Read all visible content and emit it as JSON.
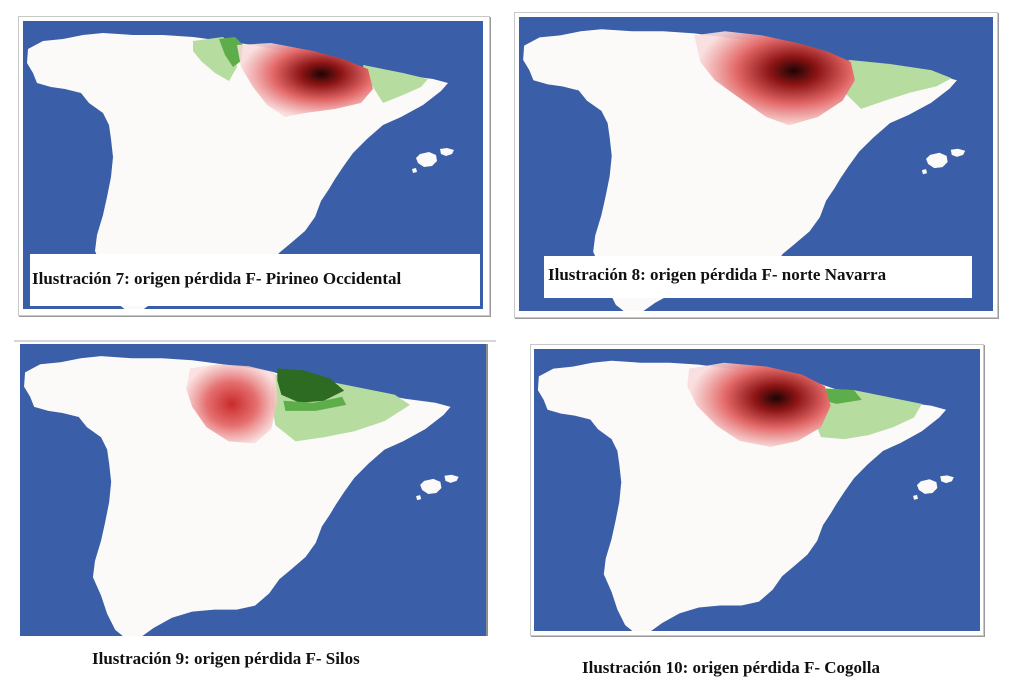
{
  "colors": {
    "sea": "#3a5fa8",
    "land": "#fbfaf8",
    "light_green": "#b7dca0",
    "mid_green": "#5dae4a",
    "dark_green": "#2d6a22",
    "loss_red": "#d02d2d",
    "loss_dark": "#2a0505"
  },
  "figures": [
    {
      "caption": "Ilustración 7: origen pérdida F- Pirineo Occidental"
    },
    {
      "caption": "Ilustración 8: origen pérdida F- norte Navarra"
    },
    {
      "caption": "Ilustración 9: origen pérdida F- Silos"
    },
    {
      "caption": "Ilustración 10: origen pérdida F- Cogolla"
    }
  ]
}
